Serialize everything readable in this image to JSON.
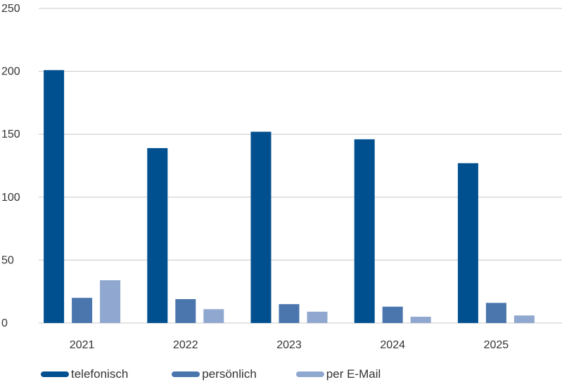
{
  "chart_data": {
    "type": "bar",
    "categories": [
      "2021",
      "2022",
      "2023",
      "2024",
      "2025"
    ],
    "series": [
      {
        "name": "telefonisch",
        "color": "#00508f",
        "values": [
          201,
          139,
          152,
          146,
          127
        ]
      },
      {
        "name": "persönlich",
        "color": "#4a75ad",
        "values": [
          20,
          19,
          15,
          13,
          16
        ]
      },
      {
        "name": "per E-Mail",
        "color": "#90a8cf",
        "values": [
          34,
          11,
          9,
          5,
          6
        ]
      }
    ],
    "yticks": [
      "0",
      "50",
      "100",
      "150",
      "200",
      "250"
    ],
    "ylim": [
      0,
      250
    ],
    "grid": true,
    "gridline_color": "#c8c8c8",
    "legend_position": "bottom-left",
    "title": "",
    "xlabel": "",
    "ylabel": ""
  }
}
